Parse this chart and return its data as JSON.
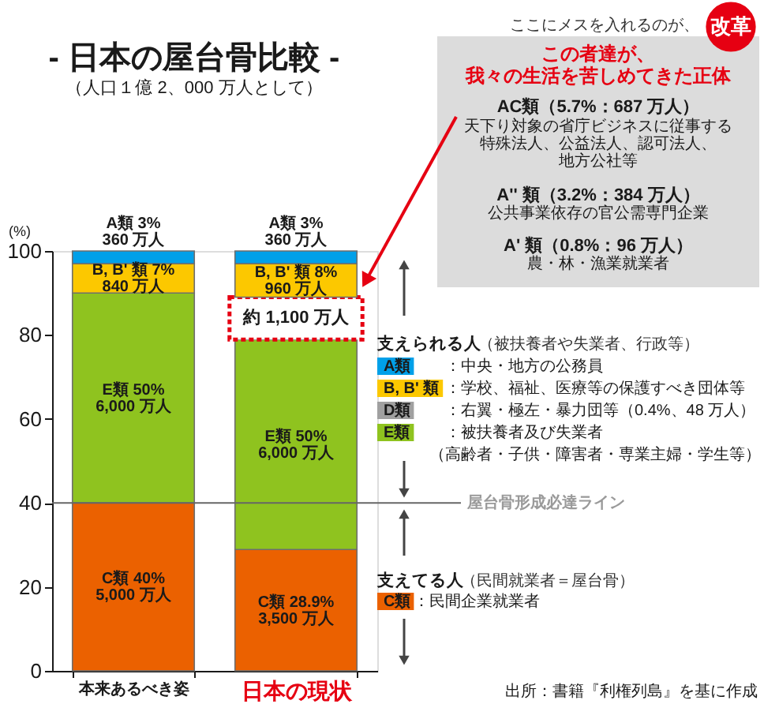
{
  "chart_data": {
    "type": "bar",
    "title": "-  日本の屋台骨比較  -",
    "subtitle": "（人口１億 2、000 万人として）",
    "ylabel": "(%)",
    "categories": [
      "本来あるべき姿",
      "日本の現状"
    ],
    "stacked": true,
    "series": [
      {
        "name": "C類",
        "color": "#eb6100",
        "values": [
          40,
          28.9
        ],
        "value_labels": [
          "C類 40%\n5,000 万人",
          "C類 28.9%\n3,500 万人"
        ]
      },
      {
        "name": "E類",
        "color": "#8fc31f",
        "values": [
          50,
          50
        ],
        "value_labels": [
          "E類 50%\n6,000 万人",
          "E類 50%\n6,000 万人"
        ]
      },
      {
        "name": "D類",
        "color": "#a0a0a0",
        "values": [
          null,
          null
        ]
      },
      {
        "color": "#e60012",
        "line_style": "dashed",
        "values": [
          null,
          10.1
        ],
        "value_labels": [
          null,
          "約 1,100 万人"
        ]
      },
      {
        "name": "B, B' 類",
        "color": "#fcc800",
        "values": [
          7,
          8
        ],
        "value_labels": [
          "B, B' 類 7%\n840 万人",
          "B, B' 類 8%\n960 万人"
        ]
      },
      {
        "name": "A類",
        "color": "#00a0e9",
        "values": [
          3,
          3
        ],
        "value_labels": [
          "A類 3%\n360 万人",
          "A類 3%\n360 万人"
        ]
      }
    ],
    "ylim": [
      0,
      100
    ],
    "yticks": [
      0,
      20,
      40,
      60,
      80,
      100
    ],
    "legend": "right",
    "ref_lines": [
      {
        "axis": "y",
        "value": 40,
        "label": "屋台骨形成必達ライン",
        "color": "#666666"
      }
    ],
    "annotations": [
      "ここにメスを入れるのが、",
      "改革",
      "この者達が、",
      "我々の生活を苦しめてきた正体",
      "AC類（5.7%：687 万人）",
      "天下り対象の省庁ビジネスに従事する",
      "特殊法人、公益法人、認可法人、",
      "地方公社等",
      "A'' 類（3.2%：384 万人）",
      "公共事業依存の官公需専門企業",
      "A' 類（0.8%：96 万人）",
      "農・林・漁業就業者",
      "支えられる人",
      "（被扶養者や失業者、行政等）",
      "：中央・地方の公務員",
      "：学校、福祉、医療等の保護すべき団体等",
      "：右翼・極左・暴力団等（0.4%、48 万人）",
      "：被扶養者及び失業者",
      "（高齢者・子供・障害者・専業主婦・学生等）",
      "支えてる人",
      "（民間就業者＝屋台骨）",
      "：民間企業就業者",
      "出所：書籍『利権列島』を基に作成"
    ]
  }
}
